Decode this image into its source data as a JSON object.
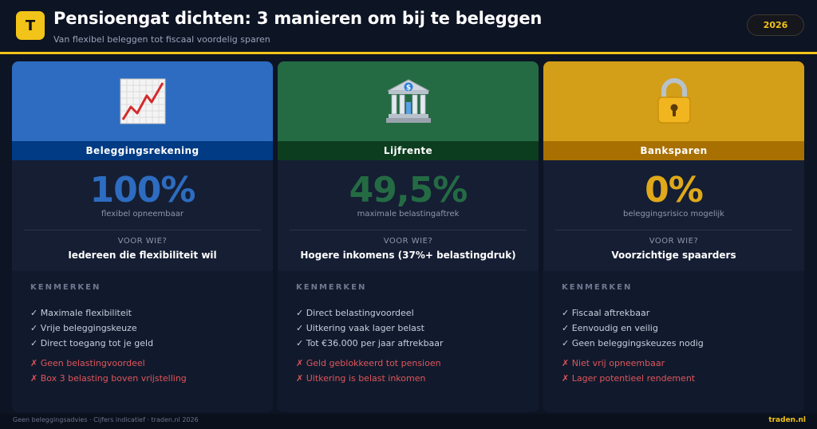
{
  "header": {
    "logo_letter": "T",
    "title": "Pensioengat dichten: 3 manieren om bij te beleggen",
    "subtitle": "Van flexibel beleggen tot fiscaal voordelig sparen",
    "year": "2026"
  },
  "cards": [
    {
      "icon": "chart-up-icon",
      "name": "Beleggingsrekening",
      "value": "100%",
      "value_caption": "flexibel opneembaar",
      "for_who_label": "VOOR WIE?",
      "for_who": "Iedereen die flexibiliteit wil",
      "features_title": "KENMERKEN",
      "pros": [
        "✓ Maximale flexibiliteit",
        "✓ Vrije beleggingskeuze",
        "✓ Direct toegang tot je geld"
      ],
      "cons": [
        "✗ Geen belastingvoordeel",
        "✗ Box 3 belasting boven vrijstelling"
      ],
      "colors": {
        "top": "#2d6cc0",
        "band": "#003b84",
        "value": "#2d6cc0"
      }
    },
    {
      "icon": "bank-icon",
      "name": "Lijfrente",
      "value": "49,5%",
      "value_caption": "maximale belastingaftrek",
      "for_who_label": "VOOR WIE?",
      "for_who": "Hogere inkomens (37%+ belastingdruk)",
      "features_title": "KENMERKEN",
      "pros": [
        "✓ Direct belastingvoordeel",
        "✓ Uitkering vaak lager belast",
        "✓ Tot €36.000 per jaar aftrekbaar"
      ],
      "cons": [
        "✗ Geld geblokkeerd tot pensioen",
        "✗ Uitkering is belast inkomen"
      ],
      "colors": {
        "top": "#246b44",
        "band": "#0d3d1f",
        "value": "#246b44"
      }
    },
    {
      "icon": "lock-icon",
      "name": "Banksparen",
      "value": "0%",
      "value_caption": "beleggingsrisico mogelijk",
      "for_who_label": "VOOR WIE?",
      "for_who": "Voorzichtige spaarders",
      "features_title": "KENMERKEN",
      "pros": [
        "✓ Fiscaal aftrekbaar",
        "✓ Eenvoudig en veilig",
        "✓ Geen beleggingskeuzes nodig"
      ],
      "cons": [
        "✗ Niet vrij opneembaar",
        "✗ Lager potentieel rendement"
      ],
      "colors": {
        "top": "#d39e18",
        "band": "#a87000",
        "value": "#e0a91a"
      }
    }
  ],
  "footer": {
    "note": "Geen beleggingsadvies · Cijfers indicatief · traden.nl 2026",
    "brand": "traden.nl"
  }
}
